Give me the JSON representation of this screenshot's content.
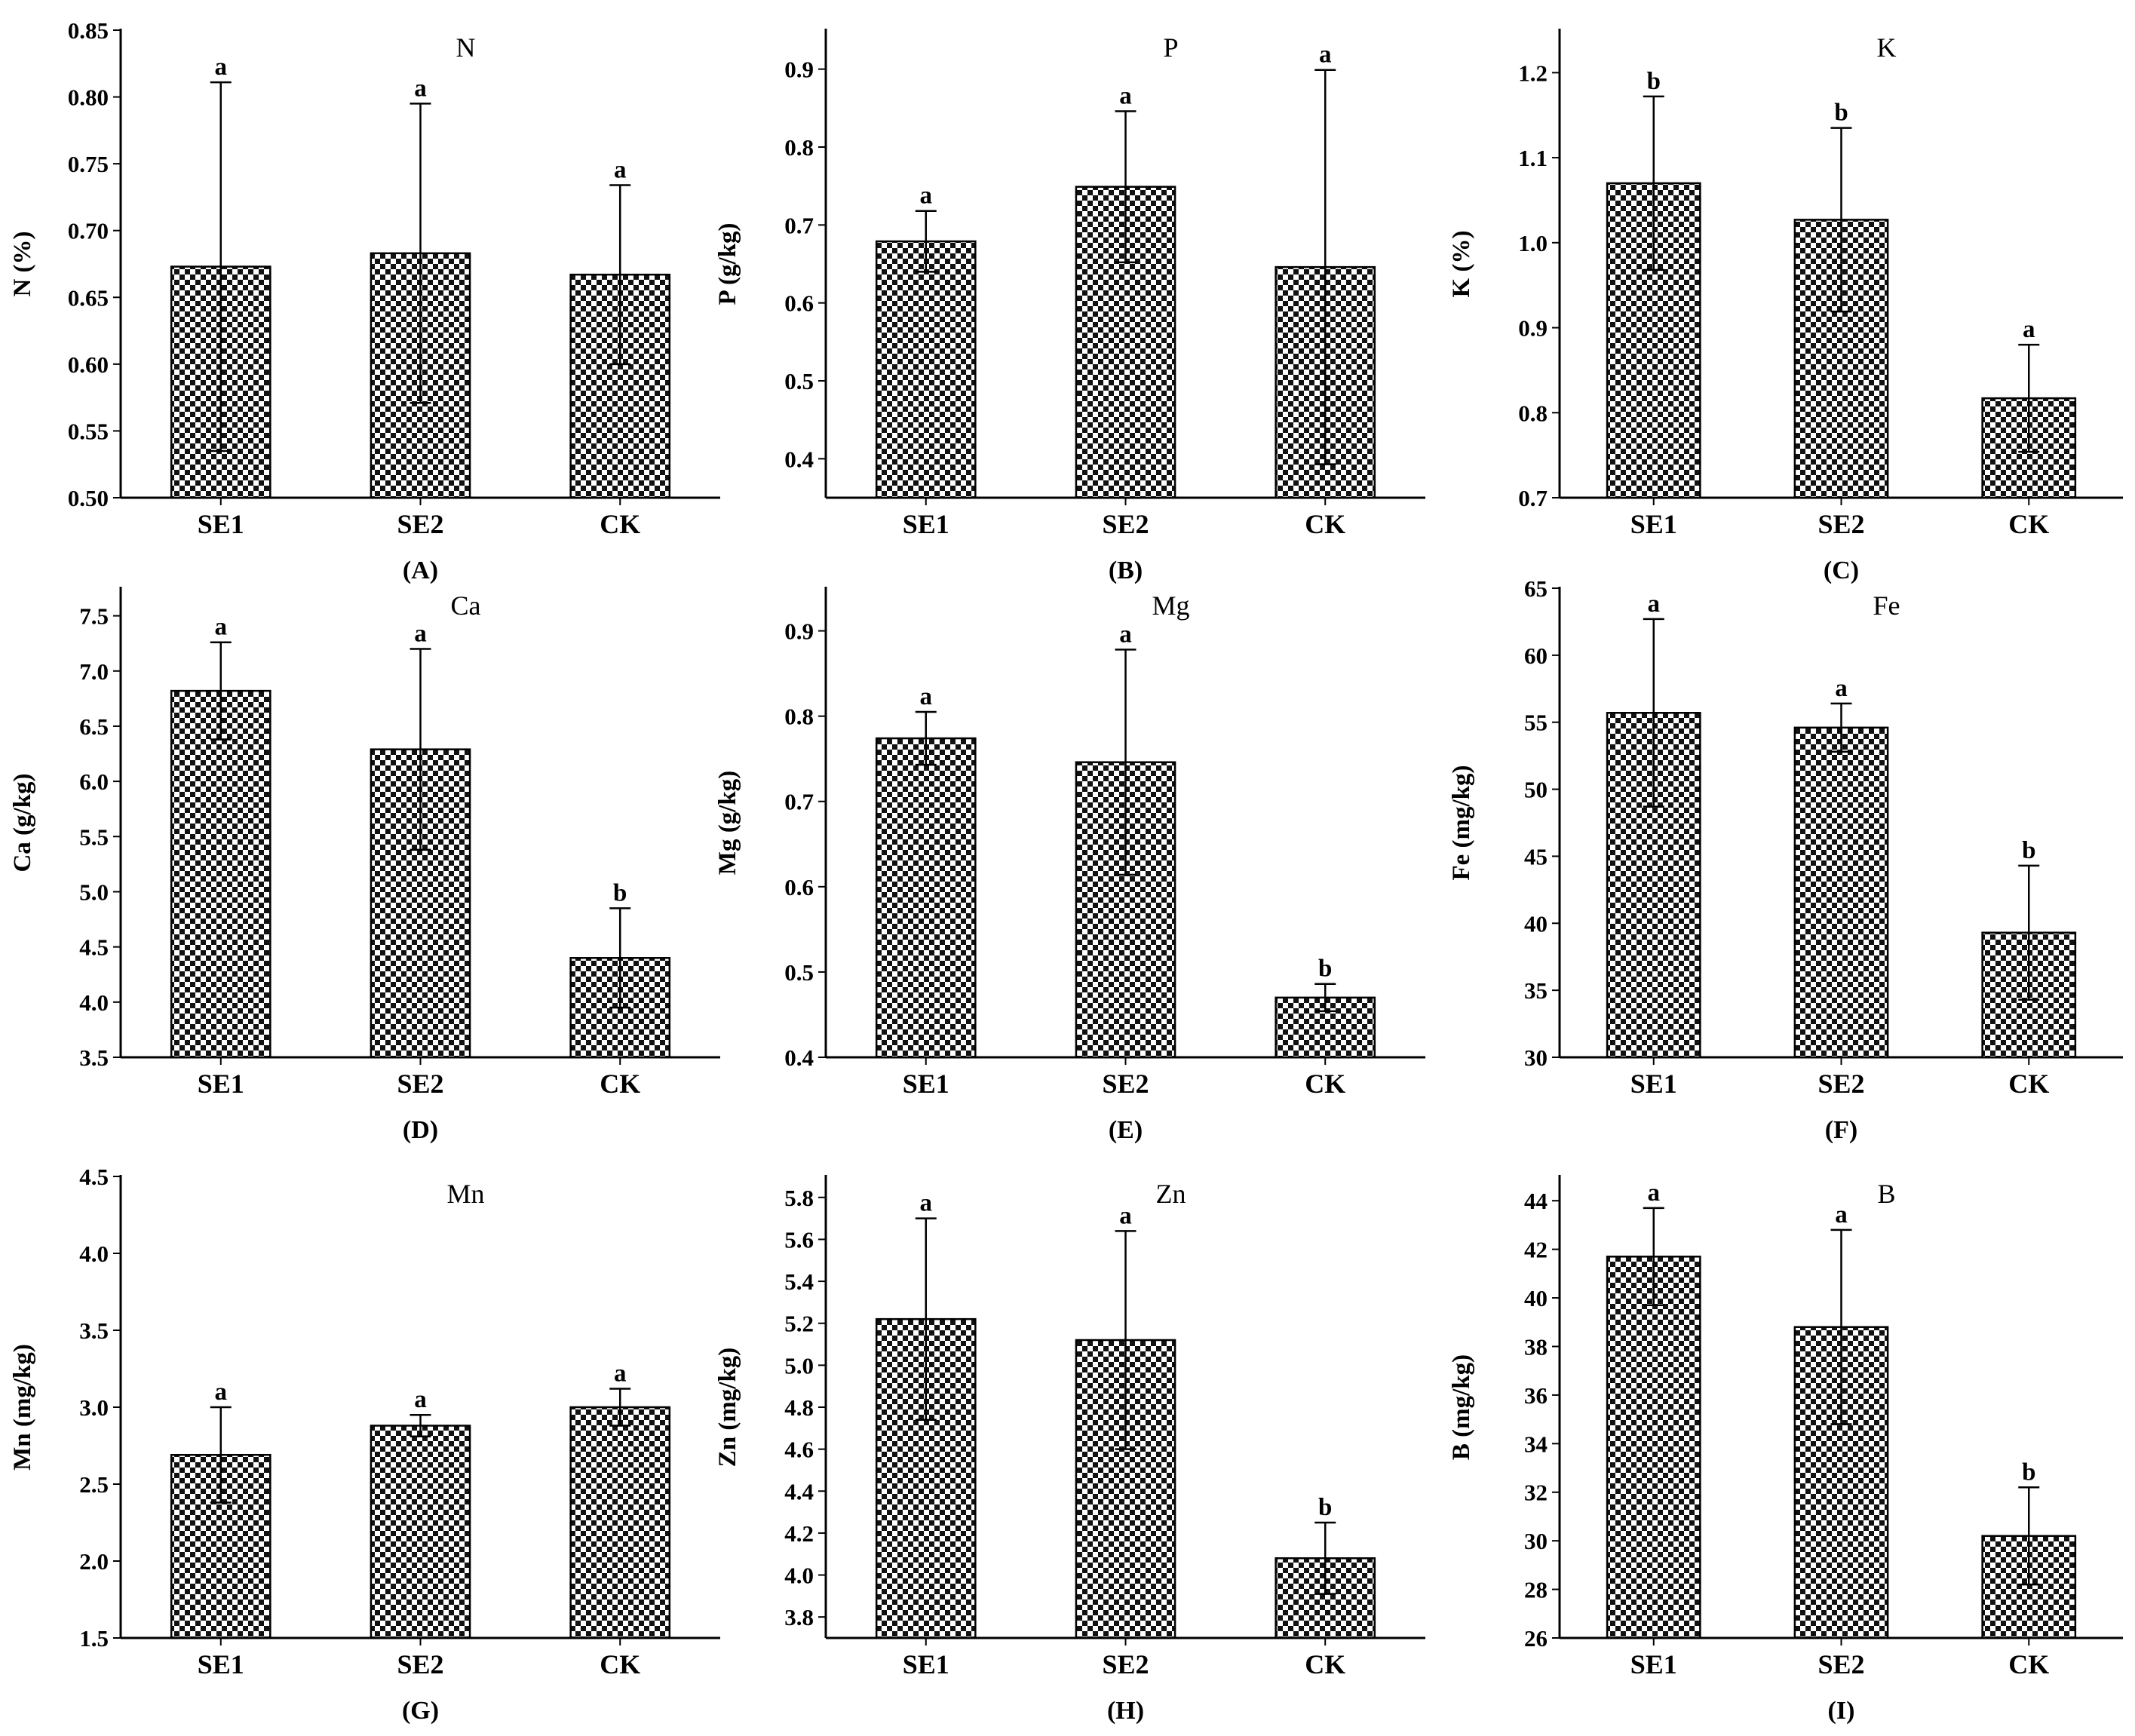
{
  "chart_data": [
    {
      "panel": "(A)",
      "title": "N",
      "type": "bar",
      "ylabel": "N (%)",
      "ylim": [
        0.5,
        0.85
      ],
      "yticks": [
        "0.50",
        "0.55",
        "0.60",
        "0.65",
        "0.70",
        "0.75",
        "0.80",
        "0.85"
      ],
      "categories": [
        "SE1",
        "SE2",
        "CK"
      ],
      "values": [
        0.673,
        0.683,
        0.667
      ],
      "errors": [
        0.138,
        0.112,
        0.067
      ],
      "labels": [
        "a",
        "a",
        "a"
      ]
    },
    {
      "panel": "(B)",
      "title": "P",
      "type": "bar",
      "ylabel": "P (g/kg)",
      "ylim": [
        0.35,
        0.95
      ],
      "yticks": [
        "0.4",
        "0.5",
        "0.6",
        "0.7",
        "0.8",
        "0.9"
      ],
      "categories": [
        "SE1",
        "SE2",
        "CK"
      ],
      "values": [
        0.679,
        0.749,
        0.646
      ],
      "errors": [
        0.039,
        0.097,
        0.253
      ],
      "labels": [
        "a",
        "a",
        "a"
      ]
    },
    {
      "panel": "(C)",
      "title": "K",
      "type": "bar",
      "ylabel": "K (%)",
      "ylim": [
        0.7,
        1.25
      ],
      "yticks": [
        "0.7",
        "0.8",
        "0.9",
        "1.0",
        "1.1",
        "1.2"
      ],
      "categories": [
        "SE1",
        "SE2",
        "CK"
      ],
      "values": [
        1.07,
        1.027,
        0.817
      ],
      "errors": [
        0.102,
        0.108,
        0.063
      ],
      "labels": [
        "b",
        "b",
        "a"
      ]
    },
    {
      "panel": "(D)",
      "title": "Ca",
      "type": "bar",
      "ylabel": "Ca (g/kg)",
      "ylim": [
        3.5,
        7.75
      ],
      "yticks": [
        "3.5",
        "4.0",
        "4.5",
        "5.0",
        "5.5",
        "6.0",
        "6.5",
        "7.0",
        "7.5"
      ],
      "categories": [
        "SE1",
        "SE2",
        "CK"
      ],
      "values": [
        6.82,
        6.29,
        4.4
      ],
      "errors": [
        0.44,
        0.91,
        0.45
      ],
      "labels": [
        "a",
        "a",
        "b"
      ]
    },
    {
      "panel": "(E)",
      "title": "Mg",
      "type": "bar",
      "ylabel": "Mg (g/kg)",
      "ylim": [
        0.4,
        0.95
      ],
      "yticks": [
        "0.4",
        "0.5",
        "0.6",
        "0.7",
        "0.8",
        "0.9"
      ],
      "categories": [
        "SE1",
        "SE2",
        "CK"
      ],
      "values": [
        0.774,
        0.746,
        0.47
      ],
      "errors": [
        0.031,
        0.132,
        0.016
      ],
      "labels": [
        "a",
        "a",
        "b"
      ]
    },
    {
      "panel": "(F)",
      "title": "Fe",
      "type": "bar",
      "ylabel": "Fe (mg/kg)",
      "ylim": [
        30,
        65
      ],
      "yticks": [
        "30",
        "35",
        "40",
        "45",
        "50",
        "55",
        "60",
        "65"
      ],
      "categories": [
        "SE1",
        "SE2",
        "CK"
      ],
      "values": [
        55.7,
        54.6,
        39.3
      ],
      "errors": [
        7.0,
        1.8,
        5.0
      ],
      "labels": [
        "a",
        "a",
        "b"
      ]
    },
    {
      "panel": "(G)",
      "title": "Mn",
      "type": "bar",
      "ylabel": "Mn (mg/kg)",
      "ylim": [
        1.5,
        4.5
      ],
      "yticks": [
        "1.5",
        "2.0",
        "2.5",
        "3.0",
        "3.5",
        "4.0",
        "4.5"
      ],
      "categories": [
        "SE1",
        "SE2",
        "CK"
      ],
      "values": [
        2.69,
        2.88,
        3.0
      ],
      "errors": [
        0.31,
        0.07,
        0.12
      ],
      "labels": [
        "a",
        "a",
        "a"
      ]
    },
    {
      "panel": "(H)",
      "title": "Zn",
      "type": "bar",
      "ylabel": "Zn (mg/kg)",
      "ylim": [
        3.7,
        5.9
      ],
      "yticks": [
        "3.8",
        "4.0",
        "4.2",
        "4.4",
        "4.6",
        "4.8",
        "5.0",
        "5.2",
        "5.4",
        "5.6",
        "5.8"
      ],
      "categories": [
        "SE1",
        "SE2",
        "CK"
      ],
      "values": [
        5.22,
        5.12,
        4.08
      ],
      "errors": [
        0.48,
        0.52,
        0.17
      ],
      "labels": [
        "a",
        "a",
        "b"
      ]
    },
    {
      "panel": "(I)",
      "title": "B",
      "type": "bar",
      "ylabel": "B (mg/kg)",
      "ylim": [
        26,
        45
      ],
      "yticks": [
        "26",
        "28",
        "30",
        "32",
        "34",
        "36",
        "38",
        "40",
        "42",
        "44"
      ],
      "categories": [
        "SE1",
        "SE2",
        "CK"
      ],
      "values": [
        41.7,
        38.8,
        30.2
      ],
      "errors": [
        2.0,
        4.0,
        2.0
      ],
      "labels": [
        "a",
        "a",
        "b"
      ]
    }
  ]
}
